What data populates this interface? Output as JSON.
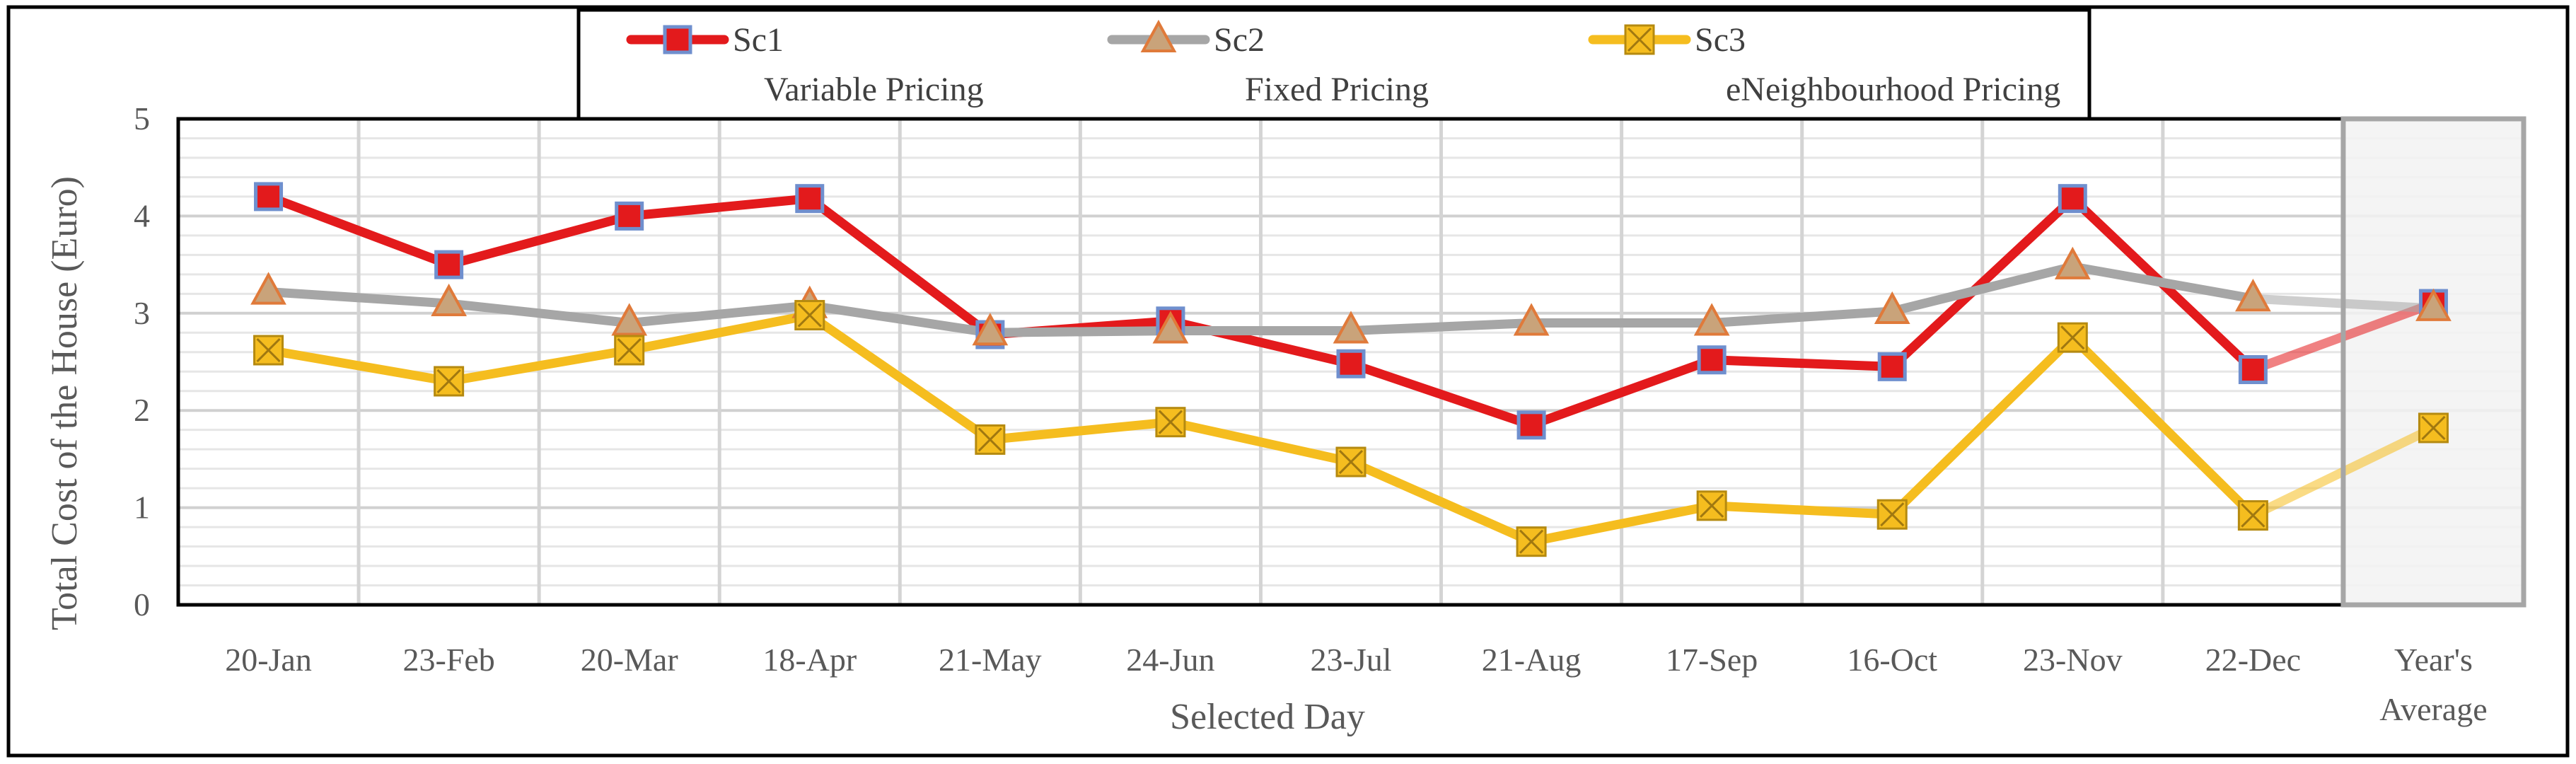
{
  "chart_data": {
    "type": "line",
    "title": "",
    "xlabel": "Selected Day",
    "ylabel": "Total Cost of the House (Euro)",
    "ylim": [
      0,
      5
    ],
    "yticks": [
      0,
      1,
      2,
      3,
      4,
      5
    ],
    "grid": "on",
    "legend_position": "top",
    "categories": [
      "20-Jan",
      "23-Feb",
      "20-Mar",
      "18-Apr",
      "21-May",
      "24-Jun",
      "23-Jul",
      "21-Aug",
      "17-Sep",
      "16-Oct",
      "23-Nov",
      "22-Dec",
      "Year's Average"
    ],
    "series": [
      {
        "name": "Sc1",
        "description": "Variable Pricing",
        "color": "#e31a1c",
        "marker": "square",
        "marker_fill": "#e31a1c",
        "marker_edge": "#6f8fce",
        "values": [
          4.2,
          3.5,
          4.0,
          4.18,
          2.78,
          2.92,
          2.48,
          1.85,
          2.52,
          2.45,
          4.18,
          2.42,
          3.1
        ]
      },
      {
        "name": "Sc2",
        "description": "Fixed Pricing",
        "color": "#a6a6a6",
        "marker": "triangle",
        "marker_fill": "#c9a37a",
        "marker_edge": "#e07a3a",
        "values": [
          3.22,
          3.1,
          2.9,
          3.08,
          2.8,
          2.82,
          2.82,
          2.9,
          2.9,
          3.02,
          3.48,
          3.15,
          3.05
        ]
      },
      {
        "name": "Sc3",
        "description": "eNeighbourhood Pricing",
        "color": "#f5bd1f",
        "marker": "x-square",
        "marker_fill": "#f5bd1f",
        "marker_edge": "#b58a10",
        "values": [
          2.62,
          2.3,
          2.62,
          2.98,
          1.7,
          1.88,
          1.47,
          0.65,
          1.02,
          0.93,
          2.75,
          0.92,
          1.82
        ]
      }
    ]
  }
}
